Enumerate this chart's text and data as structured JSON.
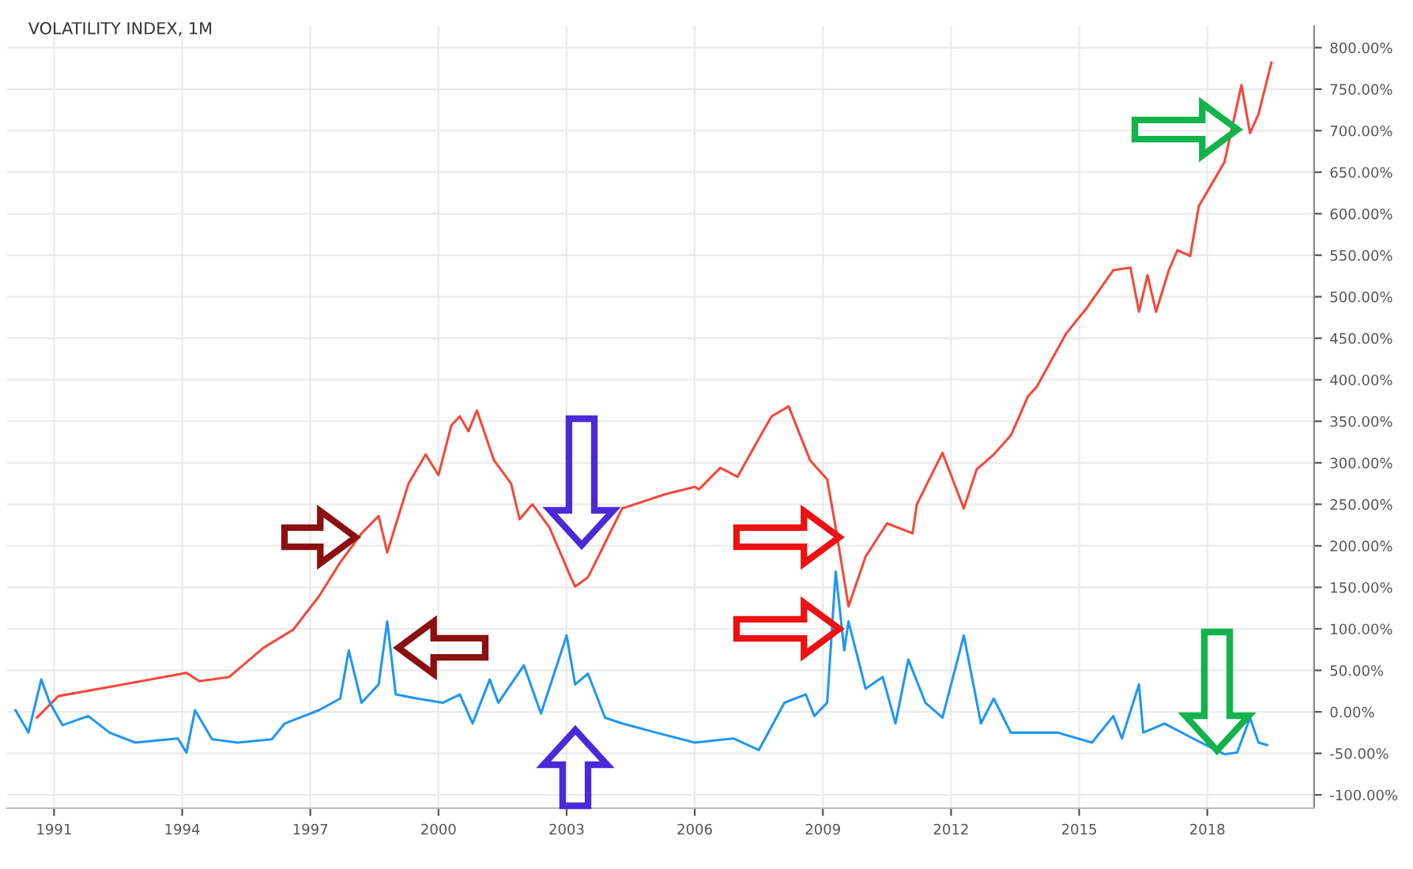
{
  "chart_data": {
    "type": "line",
    "title": "VOLATILITY INDEX, 1M",
    "series": [
      {
        "color": "#f4483a",
        "x": [
          1990.6,
          1991.1,
          1992.3,
          1994.1,
          1994.4,
          1995.1,
          1995.9,
          1996.6,
          1997.2,
          1997.7,
          1998.2,
          1998.6,
          1998.8,
          1999.3,
          1999.7,
          2000.0,
          2000.3,
          2000.5,
          2000.7,
          2000.9,
          2001.3,
          2001.7,
          2001.9,
          2002.2,
          2002.6,
          2003.1,
          2003.2,
          2003.5,
          2004.3,
          2005.3,
          2006.0,
          2006.1,
          2006.6,
          2007.0,
          2007.5,
          2007.8,
          2008.2,
          2008.7,
          2009.1,
          2009.3,
          2009.6,
          2010.0,
          2010.5,
          2011.1,
          2011.2,
          2011.8,
          2012.3,
          2012.6,
          2013.0,
          2013.4,
          2013.6,
          2013.8,
          2014.0,
          2014.7,
          2015.2,
          2015.8,
          2016.2,
          2016.4,
          2016.6,
          2016.8,
          2017.1,
          2017.3,
          2017.6,
          2017.8,
          2018.4,
          2018.8,
          2019.0,
          2019.2,
          2019.5
        ],
        "values": [
          -7,
          19,
          30,
          47,
          37,
          42,
          77,
          99,
          139,
          180,
          215,
          236,
          192,
          275,
          310,
          285,
          345,
          356,
          338,
          363,
          303,
          275,
          232,
          250,
          222,
          162,
          151,
          162,
          245,
          262,
          271,
          268,
          294,
          283,
          329,
          356,
          368,
          303,
          280,
          222,
          127,
          187,
          227,
          215,
          250,
          312,
          245,
          292,
          310,
          333,
          356,
          380,
          391,
          456,
          488,
          532,
          535,
          482,
          526,
          482,
          532,
          556,
          549,
          609,
          662,
          755,
          697,
          720,
          782
        ]
      },
      {
        "color": "#2196f3",
        "x": [
          1990.1,
          1990.4,
          1990.7,
          1990.9,
          1991.2,
          1991.8,
          1992.3,
          1992.9,
          1993.9,
          1994.1,
          1994.3,
          1994.7,
          1995.3,
          1996.1,
          1996.4,
          1997.2,
          1997.7,
          1997.9,
          1998.2,
          1998.6,
          1998.8,
          1999.0,
          1999.5,
          2000.1,
          2000.5,
          2000.8,
          2001.2,
          2001.4,
          2002.0,
          2002.4,
          2003.0,
          2003.2,
          2003.5,
          2003.9,
          2004.3,
          2005.1,
          2006.0,
          2006.9,
          2007.5,
          2008.1,
          2008.6,
          2008.8,
          2009.1,
          2009.3,
          2009.5,
          2009.6,
          2010.0,
          2010.4,
          2010.7,
          2011.0,
          2011.4,
          2011.8,
          2012.3,
          2012.7,
          2013.0,
          2013.4,
          2014.5,
          2015.3,
          2015.8,
          2016.0,
          2016.4,
          2016.5,
          2017.0,
          2017.7,
          2018.4,
          2018.7,
          2019.0,
          2019.2,
          2019.4
        ],
        "values": [
          2,
          -25,
          39,
          11,
          -16,
          -5,
          -25,
          -37,
          -32,
          -49,
          2,
          -33,
          -37,
          -33,
          -14,
          2,
          16,
          74,
          11,
          33,
          109,
          21,
          16,
          11,
          21,
          -14,
          39,
          11,
          56,
          -2,
          92,
          33,
          46,
          -7,
          -14,
          -25,
          -37,
          -32,
          -46,
          11,
          21,
          -5,
          11,
          169,
          74,
          109,
          28,
          42,
          -14,
          63,
          11,
          -7,
          92,
          -14,
          16,
          -25,
          -25,
          -37,
          -5,
          -32,
          33,
          -25,
          -14,
          -33,
          -51,
          -49,
          -7,
          -37,
          -40
        ]
      }
    ],
    "xlim": [
      1989.9,
      2020.5
    ],
    "xticks": [
      1991,
      1994,
      1997,
      2000,
      2003,
      2006,
      2009,
      2012,
      2015,
      2018
    ],
    "ylim": [
      -116,
      826
    ],
    "yticks": [
      {
        "value": -100,
        "label": "-100.00%"
      },
      {
        "value": -50,
        "label": "-50.00%"
      },
      {
        "value": 0,
        "label": "0.00%"
      },
      {
        "value": 50,
        "label": "50.00%"
      },
      {
        "value": 100,
        "label": "100.00%"
      },
      {
        "value": 150,
        "label": "150.00%"
      },
      {
        "value": 200,
        "label": "200.00%"
      },
      {
        "value": 250,
        "label": "250.00%"
      },
      {
        "value": 300,
        "label": "300.00%"
      },
      {
        "value": 350,
        "label": "350.00%"
      },
      {
        "value": 400,
        "label": "400.00%"
      },
      {
        "value": 450,
        "label": "450.00%"
      },
      {
        "value": 500,
        "label": "500.00%"
      },
      {
        "value": 550,
        "label": "550.00%"
      },
      {
        "value": 600,
        "label": "600.00%"
      },
      {
        "value": 650,
        "label": "650.00%"
      },
      {
        "value": 700,
        "label": "700.00%"
      },
      {
        "value": 750,
        "label": "750.00%"
      },
      {
        "value": 800,
        "label": "800.00%"
      }
    ],
    "grid": true,
    "marker": "none",
    "line_style": "solid"
  }
}
